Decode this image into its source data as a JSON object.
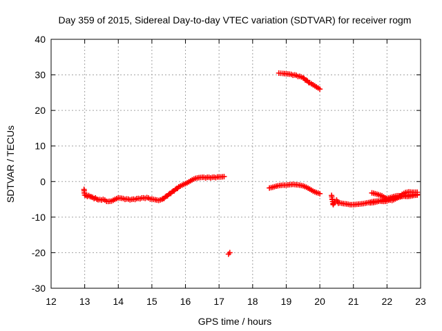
{
  "chart_data": {
    "type": "scatter",
    "title": "Day 359 of 2015, Sidereal Day-to-day VTEC variation (SDTVAR) for receiver rogm",
    "xlabel": "GPS time / hours",
    "ylabel": "SDTVAR / TECUs",
    "xlim": [
      12,
      23
    ],
    "ylim": [
      -30,
      40
    ],
    "xticks": [
      "12",
      "13",
      "14",
      "15",
      "16",
      "17",
      "18",
      "19",
      "20",
      "21",
      "22",
      "23"
    ],
    "yticks": [
      "-30",
      "-20",
      "-10",
      "0",
      "10",
      "20",
      "30",
      "40"
    ],
    "grid": true,
    "marker_color": "#ff0000",
    "series": [
      {
        "name": "segment-1",
        "points": [
          [
            12.98,
            -2.2
          ],
          [
            13.0,
            -3.8
          ],
          [
            13.2,
            -4.3
          ],
          [
            13.4,
            -5.1
          ],
          [
            13.55,
            -5.0
          ],
          [
            13.7,
            -5.6
          ],
          [
            13.8,
            -5.5
          ],
          [
            13.9,
            -5.0
          ],
          [
            14.0,
            -4.6
          ],
          [
            14.1,
            -4.7
          ],
          [
            14.25,
            -4.9
          ],
          [
            14.4,
            -5.0
          ],
          [
            14.55,
            -4.8
          ],
          [
            14.7,
            -4.6
          ],
          [
            14.85,
            -4.5
          ],
          [
            15.0,
            -4.9
          ],
          [
            15.1,
            -5.1
          ],
          [
            15.2,
            -5.3
          ],
          [
            15.3,
            -5.0
          ],
          [
            15.4,
            -4.3
          ],
          [
            15.5,
            -3.6
          ],
          [
            15.6,
            -2.9
          ],
          [
            15.7,
            -2.2
          ],
          [
            15.8,
            -1.5
          ],
          [
            15.9,
            -1.0
          ],
          [
            16.0,
            -0.6
          ],
          [
            16.1,
            -0.1
          ],
          [
            16.2,
            0.5
          ],
          [
            16.3,
            0.9
          ],
          [
            16.4,
            1.1
          ],
          [
            16.5,
            1.2
          ],
          [
            16.65,
            1.2
          ],
          [
            16.8,
            1.2
          ],
          [
            16.95,
            1.3
          ],
          [
            17.05,
            1.3
          ],
          [
            17.15,
            1.4
          ]
        ]
      },
      {
        "name": "segment-2",
        "points": [
          [
            17.28,
            -20.4
          ],
          [
            17.32,
            -20.0
          ]
        ]
      },
      {
        "name": "segment-3",
        "points": [
          [
            18.78,
            30.5
          ],
          [
            18.9,
            30.4
          ],
          [
            19.0,
            30.3
          ],
          [
            19.1,
            30.2
          ],
          [
            19.25,
            30.0
          ],
          [
            19.4,
            29.6
          ],
          [
            19.5,
            29.2
          ],
          [
            19.6,
            28.5
          ],
          [
            19.7,
            27.8
          ],
          [
            19.8,
            27.2
          ],
          [
            19.9,
            26.6
          ],
          [
            20.0,
            26.0
          ]
        ]
      },
      {
        "name": "segment-4",
        "points": [
          [
            18.5,
            -1.8
          ],
          [
            18.6,
            -1.6
          ],
          [
            18.7,
            -1.3
          ],
          [
            18.8,
            -1.1
          ],
          [
            18.9,
            -1.0
          ],
          [
            19.0,
            -1.0
          ],
          [
            19.1,
            -0.9
          ],
          [
            19.2,
            -0.8
          ],
          [
            19.3,
            -0.9
          ],
          [
            19.4,
            -1.0
          ],
          [
            19.5,
            -1.2
          ],
          [
            19.6,
            -1.6
          ],
          [
            19.7,
            -2.1
          ],
          [
            19.8,
            -2.7
          ],
          [
            19.9,
            -3.1
          ],
          [
            20.0,
            -3.4
          ]
        ]
      },
      {
        "name": "segment-5",
        "points": [
          [
            20.35,
            -3.9
          ],
          [
            20.4,
            -6.5
          ],
          [
            20.45,
            -5.6
          ],
          [
            20.5,
            -5.2
          ],
          [
            20.55,
            -6.1
          ],
          [
            20.6,
            -6.0
          ],
          [
            20.7,
            -6.2
          ],
          [
            20.8,
            -6.3
          ],
          [
            20.9,
            -6.5
          ],
          [
            21.0,
            -6.5
          ],
          [
            21.1,
            -6.4
          ],
          [
            21.2,
            -6.3
          ],
          [
            21.3,
            -6.2
          ],
          [
            21.4,
            -6.0
          ],
          [
            21.5,
            -5.8
          ],
          [
            21.6,
            -5.6
          ],
          [
            21.7,
            -5.5
          ],
          [
            21.8,
            -5.5
          ],
          [
            21.9,
            -5.6
          ],
          [
            22.0,
            -5.5
          ],
          [
            22.1,
            -5.0
          ],
          [
            22.2,
            -4.8
          ],
          [
            22.3,
            -4.6
          ],
          [
            22.4,
            -4.3
          ],
          [
            22.5,
            -4.1
          ],
          [
            22.6,
            -3.9
          ],
          [
            22.7,
            -3.8
          ],
          [
            22.8,
            -3.7
          ],
          [
            22.9,
            -3.6
          ]
        ]
      },
      {
        "name": "segment-6",
        "points": [
          [
            21.55,
            -3.2
          ],
          [
            21.65,
            -3.4
          ],
          [
            21.75,
            -3.7
          ],
          [
            21.85,
            -4.0
          ],
          [
            21.95,
            -4.6
          ],
          [
            22.05,
            -5.1
          ],
          [
            22.15,
            -5.3
          ],
          [
            22.25,
            -4.9
          ],
          [
            22.35,
            -4.3
          ],
          [
            22.45,
            -3.6
          ],
          [
            22.55,
            -3.1
          ],
          [
            22.65,
            -2.9
          ],
          [
            22.75,
            -3.0
          ],
          [
            22.85,
            -3.0
          ],
          [
            22.9,
            -3.0
          ]
        ]
      },
      {
        "name": "segment-7",
        "points": [
          [
            21.5,
            -6.0
          ],
          [
            21.6,
            -5.9
          ],
          [
            21.7,
            -5.7
          ],
          [
            21.8,
            -5.4
          ],
          [
            21.9,
            -5.2
          ],
          [
            22.0,
            -4.8
          ],
          [
            22.1,
            -4.5
          ],
          [
            22.2,
            -4.2
          ],
          [
            22.3,
            -4.0
          ],
          [
            22.4,
            -4.0
          ],
          [
            22.5,
            -4.1
          ],
          [
            22.6,
            -4.2
          ],
          [
            22.7,
            -4.1
          ],
          [
            22.8,
            -3.9
          ],
          [
            22.9,
            -3.8
          ]
        ]
      }
    ]
  }
}
